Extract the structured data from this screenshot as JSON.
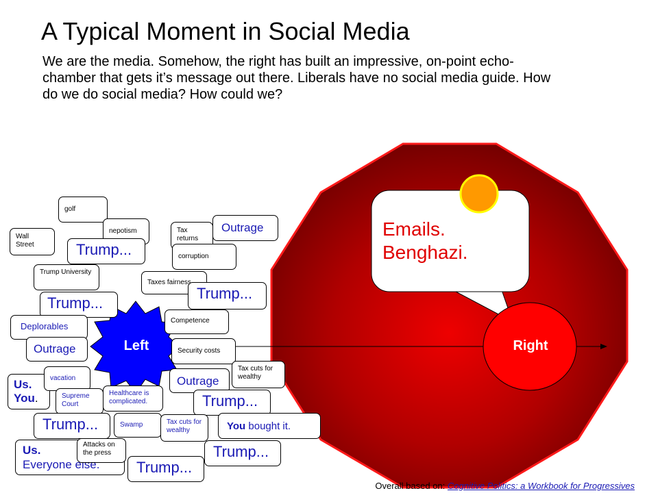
{
  "title": "A Typical Moment in Social Media",
  "subtitle": "We are the media. Somehow, the right has built an impressive, on-point echo-chamber that gets it’s message out there. Liberals have no social media guide. How do we do social media? How could we?",
  "right": {
    "label": "Right",
    "speech": "Emails.\nBenghazi."
  },
  "left": {
    "label": "Left",
    "bubbles": {
      "golf": "golf",
      "nepotism": "nepotism",
      "wall_street": "Wall Street",
      "trump_1": "Trump...",
      "tax_returns": "Tax returns",
      "outrage_1": "Outrage",
      "corruption": "corruption",
      "trump_university": "Trump University",
      "taxes_fairness": "Taxes fairness",
      "trump_2": "Trump...",
      "trump_3": "Trump...",
      "competence": "Competence",
      "deplorables": "Deplorables",
      "outrage_2": "Outrage",
      "security_costs": "Security costs",
      "tax_cuts_1": "Tax cuts for wealthy",
      "us": "Us.",
      "you": "You",
      "you_period": ".",
      "vacation": "vacation",
      "outrage_3": "Outrage",
      "supreme_court": "Supreme Court",
      "healthcare": "Healthcare is complicated.",
      "trump_4": "Trump...",
      "trump_5": "Trump...",
      "swamp": "Swamp",
      "tax_cuts_2": "Tax cuts for wealthy",
      "you_bought_bold": "You",
      "you_bought_rest": " bought it.",
      "us_2": "Us.",
      "everyone_else": "Everyone else.",
      "attacks_press": "Attacks on the press",
      "trump_6": "Trump...",
      "trump_7": "Trump..."
    }
  },
  "footer": {
    "prefix": "Overall based on: ",
    "link": "Cognitive Politics: a Workbook for Progressives"
  },
  "colors": {
    "octagon_center": "#e00000",
    "octagon_edge": "#6a0000",
    "octagon_stroke": "#ff1a1a",
    "right_circle": "#ff0000",
    "left_blob": "#0000ff",
    "indicator": "#ff9900",
    "text_blue": "#1a1ab4",
    "text_red": "#e00000"
  }
}
